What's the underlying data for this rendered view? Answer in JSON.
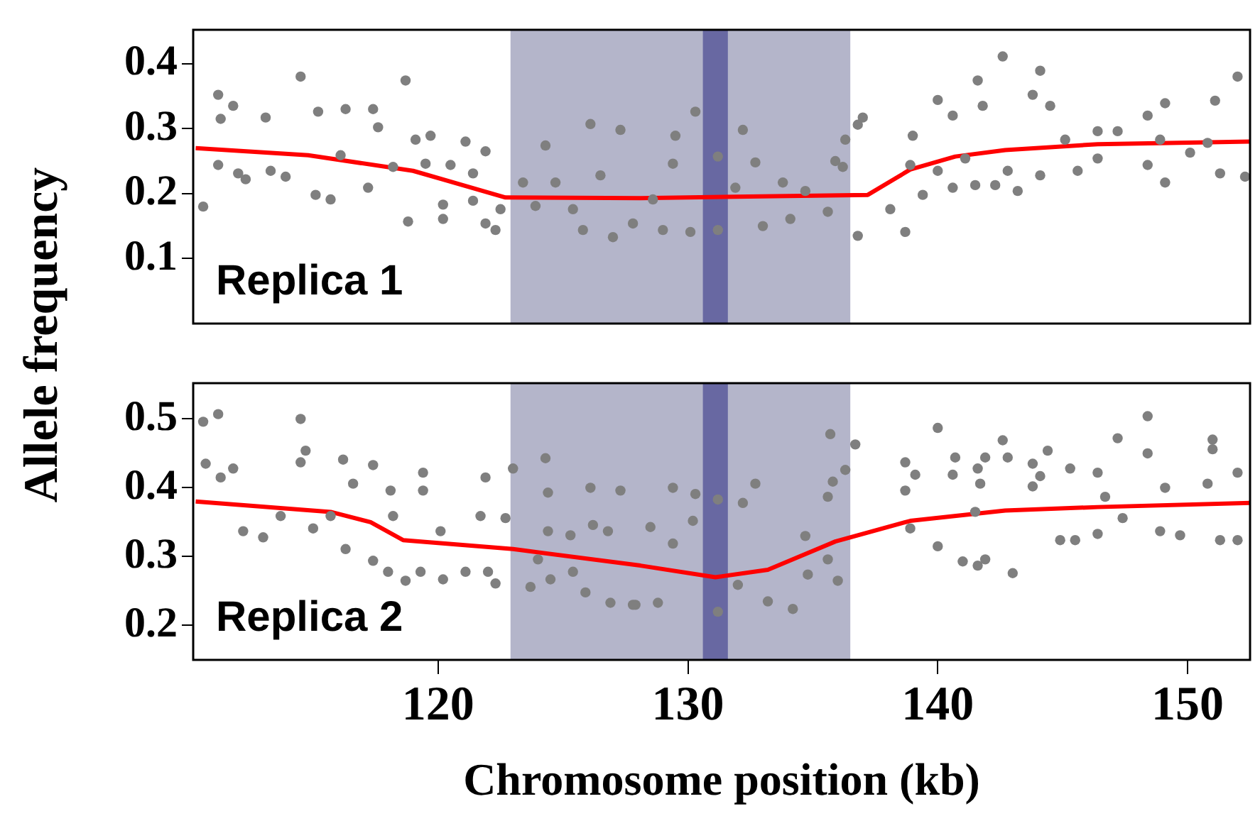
{
  "chart_data": [
    {
      "type": "scatter",
      "ylabel": "Allele frequency",
      "annotations": [
        "Replica 1"
      ],
      "xlim": [
        110.2,
        152.5
      ],
      "xticks": [
        120,
        130,
        140,
        150
      ],
      "ylim": [
        0,
        0.452
      ],
      "yticks": [
        0.1,
        0.2,
        0.3,
        0.4
      ],
      "tick_labels": "y",
      "grid": false,
      "legend": false,
      "bands": [
        {
          "axis": "x",
          "from": 122.9,
          "to": 136.5,
          "color": "#b4b5ca"
        },
        {
          "axis": "x",
          "from": 130.6,
          "to": 131.6,
          "color": "#6868a2"
        }
      ],
      "series": [
        {
          "type": "scatter",
          "marker": "circle",
          "color": "#7f7f7f",
          "x": [
            114.5,
            118.7,
            111.2,
            111.8,
            111.3,
            113.1,
            115.2,
            116.3,
            117.4,
            117.6,
            119.1,
            119.7,
            121.1,
            121.9,
            110.6,
            112.3,
            113.9,
            115.1,
            115.7,
            117.2,
            118.8,
            120.2,
            120.2,
            121.4,
            122.3,
            121.9,
            111.2,
            112.0,
            113.3,
            116.1,
            118.2,
            119.5,
            120.5,
            121.4,
            122.5,
            124.3,
            126.1,
            127.3,
            123.4,
            123.9,
            125.8,
            127.0,
            125.4,
            126.5,
            124.7,
            130.3,
            129.5,
            132.2,
            131.2,
            129.4,
            132.7,
            131.2,
            130.1,
            129.0,
            127.8,
            133.0,
            134.1,
            133.8,
            135.9,
            136.3,
            136.2,
            135.6,
            131.9,
            128.6,
            134.7,
            136.8,
            137.0,
            136.8,
            138.7,
            138.1,
            139.0,
            138.9,
            140.0,
            140.6,
            141.6,
            141.8,
            142.6,
            144.1,
            143.8,
            144.5,
            143.2,
            142.3,
            141.5,
            140.6,
            139.4,
            140.0,
            141.1,
            142.8,
            144.1,
            145.1,
            145.6,
            146.4,
            147.2,
            146.4,
            148.4,
            149.1,
            149.1,
            148.4,
            150.1,
            151.1,
            152.0,
            151.3,
            152.3,
            150.8,
            148.9
          ],
          "values": [
            0.38,
            0.374,
            0.352,
            0.335,
            0.315,
            0.317,
            0.326,
            0.33,
            0.33,
            0.302,
            0.283,
            0.289,
            0.28,
            0.265,
            0.18,
            0.222,
            0.226,
            0.198,
            0.191,
            0.209,
            0.157,
            0.161,
            0.183,
            0.189,
            0.144,
            0.154,
            0.244,
            0.231,
            0.235,
            0.259,
            0.241,
            0.246,
            0.244,
            0.231,
            0.176,
            0.274,
            0.307,
            0.298,
            0.217,
            0.181,
            0.144,
            0.133,
            0.176,
            0.228,
            0.217,
            0.326,
            0.289,
            0.298,
            0.257,
            0.246,
            0.248,
            0.144,
            0.141,
            0.144,
            0.154,
            0.15,
            0.161,
            0.217,
            0.25,
            0.283,
            0.241,
            0.172,
            0.209,
            0.191,
            0.204,
            0.306,
            0.317,
            0.135,
            0.141,
            0.176,
            0.289,
            0.244,
            0.344,
            0.32,
            0.374,
            0.335,
            0.411,
            0.389,
            0.352,
            0.335,
            0.204,
            0.213,
            0.213,
            0.209,
            0.198,
            0.235,
            0.254,
            0.235,
            0.228,
            0.283,
            0.235,
            0.296,
            0.296,
            0.254,
            0.32,
            0.339,
            0.217,
            0.244,
            0.263,
            0.343,
            0.38,
            0.231,
            0.226,
            0.278,
            0.283
          ]
        },
        {
          "type": "line",
          "marker": "none",
          "color": "#ff0000",
          "x": [
            110.3,
            114.8,
            119.0,
            122.7,
            128.1,
            137.2,
            138.9,
            140.7,
            142.7,
            146.4,
            152.5
          ],
          "values": [
            0.27,
            0.259,
            0.235,
            0.194,
            0.193,
            0.198,
            0.237,
            0.257,
            0.267,
            0.276,
            0.28
          ]
        }
      ]
    },
    {
      "type": "scatter",
      "xlabel": "Chromosome position (kb)",
      "annotations": [
        "Replica 2"
      ],
      "xlim": [
        110.2,
        152.5
      ],
      "xticks": [
        120,
        130,
        140,
        150
      ],
      "ylim": [
        0.15,
        0.552
      ],
      "yticks": [
        0.2,
        0.3,
        0.4,
        0.5
      ],
      "grid": false,
      "legend": false,
      "bands": [
        {
          "axis": "x",
          "from": 122.9,
          "to": 136.5,
          "color": "#b4b5ca"
        },
        {
          "axis": "x",
          "from": 130.6,
          "to": 131.6,
          "color": "#6868a2"
        }
      ],
      "series": [
        {
          "type": "scatter",
          "marker": "circle",
          "color": "#7f7f7f",
          "x": [
            111.2,
            110.6,
            114.5,
            114.7,
            114.5,
            110.7,
            111.8,
            111.3,
            116.2,
            117.4,
            116.6,
            119.4,
            119.4,
            118.1,
            121.9,
            112.2,
            113.0,
            115.0,
            116.3,
            117.4,
            118.0,
            118.7,
            119.3,
            120.2,
            121.1,
            122.3,
            122.0,
            113.7,
            115.7,
            118.2,
            121.7,
            120.1,
            122.7,
            123.0,
            124.3,
            124.4,
            126.1,
            127.3,
            124.4,
            125.3,
            126.2,
            126.8,
            123.7,
            124.5,
            125.9,
            126.9,
            127.9,
            125.4,
            124.0,
            129.4,
            130.3,
            132.7,
            132.2,
            131.2,
            135.7,
            136.3,
            135.8,
            135.6,
            136.7,
            131.2,
            134.2,
            127.8,
            128.8,
            133.2,
            134.8,
            136.0,
            134.7,
            135.6,
            128.5,
            130.2,
            129.4,
            132.0,
            140.0,
            138.7,
            139.1,
            140.7,
            140.6,
            141.6,
            141.9,
            142.6,
            142.8,
            141.7,
            138.7,
            138.9,
            140.0,
            141.0,
            141.6,
            143.0,
            141.9,
            143.8,
            144.4,
            144.1,
            145.3,
            146.4,
            147.2,
            148.4,
            148.4,
            149.1,
            151.0,
            151.0,
            152.0,
            144.9,
            145.5,
            146.4,
            147.4,
            148.9,
            149.7,
            151.3,
            152.0,
            150.8,
            146.7,
            143.8,
            141.5
          ],
          "values": [
            0.507,
            0.496,
            0.5,
            0.454,
            0.437,
            0.435,
            0.428,
            0.415,
            0.441,
            0.433,
            0.406,
            0.422,
            0.396,
            0.396,
            0.415,
            0.337,
            0.328,
            0.341,
            0.311,
            0.294,
            0.278,
            0.265,
            0.278,
            0.267,
            0.278,
            0.261,
            0.278,
            0.359,
            0.359,
            0.359,
            0.359,
            0.337,
            0.356,
            0.428,
            0.443,
            0.393,
            0.4,
            0.396,
            0.337,
            0.331,
            0.346,
            0.337,
            0.256,
            0.267,
            0.248,
            0.233,
            0.23,
            0.278,
            0.296,
            0.4,
            0.391,
            0.406,
            0.378,
            0.383,
            0.478,
            0.426,
            0.409,
            0.387,
            0.463,
            0.22,
            0.224,
            0.23,
            0.233,
            0.235,
            0.274,
            0.265,
            0.33,
            0.296,
            0.343,
            0.352,
            0.319,
            0.259,
            0.487,
            0.437,
            0.419,
            0.444,
            0.419,
            0.428,
            0.444,
            0.469,
            0.444,
            0.406,
            0.396,
            0.341,
            0.315,
            0.293,
            0.287,
            0.276,
            0.296,
            0.435,
            0.454,
            0.417,
            0.428,
            0.422,
            0.472,
            0.504,
            0.45,
            0.4,
            0.47,
            0.456,
            0.422,
            0.324,
            0.324,
            0.333,
            0.356,
            0.337,
            0.331,
            0.324,
            0.324,
            0.406,
            0.387,
            0.402,
            0.365
          ]
        },
        {
          "type": "line",
          "marker": "none",
          "color": "#ff0000",
          "x": [
            110.3,
            115.7,
            117.3,
            118.6,
            123.0,
            128.1,
            131.1,
            133.2,
            135.9,
            138.9,
            142.7,
            146.4,
            152.5
          ],
          "values": [
            0.38,
            0.365,
            0.35,
            0.324,
            0.311,
            0.287,
            0.27,
            0.281,
            0.322,
            0.352,
            0.367,
            0.372,
            0.378
          ]
        }
      ]
    }
  ]
}
